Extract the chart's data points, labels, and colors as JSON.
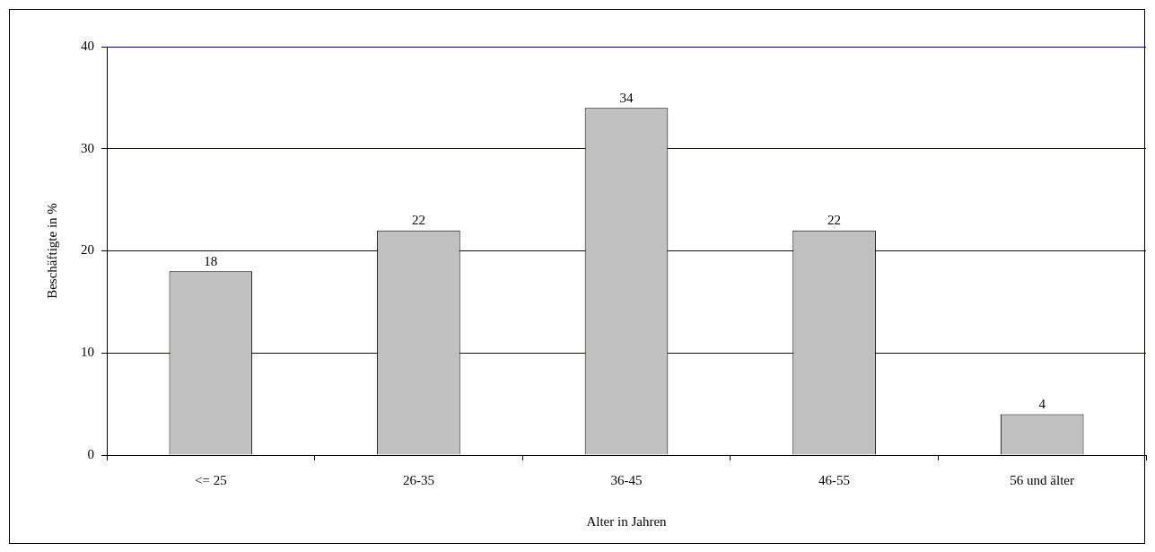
{
  "chart_data": {
    "type": "bar",
    "xlabel": "Alter in Jahren",
    "ylabel": "Beschäftigte in %",
    "categories": [
      "<= 25",
      "26-35",
      "36-45",
      "46-55",
      "56 und älter"
    ],
    "values": [
      18,
      22,
      34,
      22,
      4
    ],
    "color": "#c0c0c0",
    "ylim": [
      0,
      40
    ],
    "yticks": [
      0,
      10,
      20,
      30,
      40
    ],
    "grid": "y",
    "data_labels": true
  }
}
